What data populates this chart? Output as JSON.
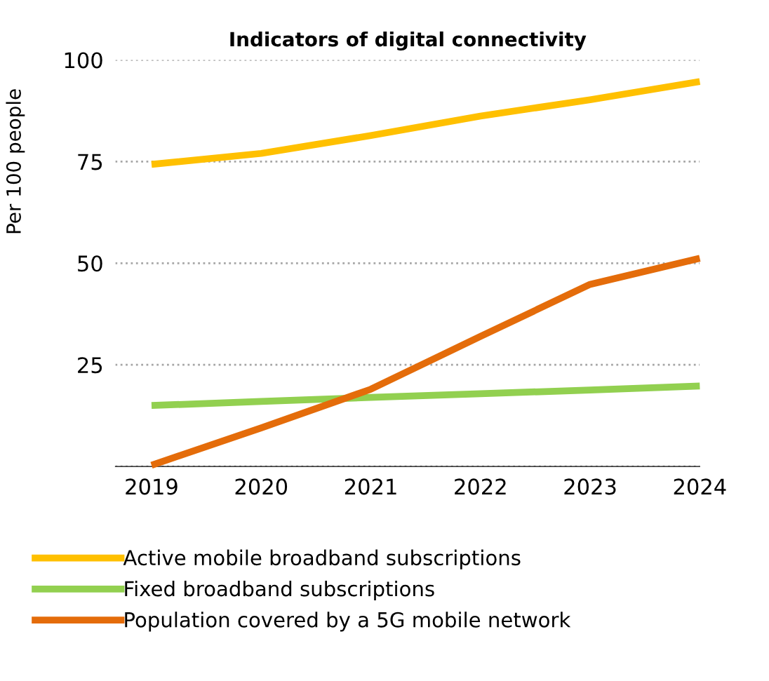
{
  "chart_data": {
    "type": "line",
    "title": "Indicators of digital connectivity",
    "ylabel": "Per 100 people",
    "categories": [
      "2019",
      "2020",
      "2021",
      "2022",
      "2023",
      "2024"
    ],
    "series": [
      {
        "name": "Active mobile broadband subscriptions",
        "color": "#ffc000",
        "values": [
          74.3,
          77,
          81.4,
          86.2,
          90.2,
          94.7
        ]
      },
      {
        "name": "Fixed broadband subscriptions",
        "color": "#92d050",
        "values": [
          15,
          16,
          17,
          17.9,
          18.8,
          19.8
        ]
      },
      {
        "name": "Population covered by a 5G mobile network",
        "color": "#e46c0a",
        "values": [
          0.3,
          9.5,
          19,
          32,
          44.8,
          51.2
        ]
      }
    ],
    "ylim": [
      0,
      100
    ],
    "yticks": [
      {
        "value": 0,
        "label": null
      },
      25,
      50,
      75,
      100
    ],
    "grid": "y",
    "legend": "bottom",
    "line_style": "solid",
    "marker": "none"
  }
}
